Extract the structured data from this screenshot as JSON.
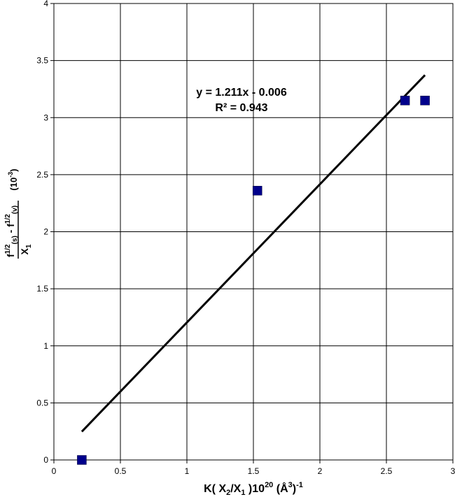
{
  "chart_data": {
    "type": "scatter",
    "title": "",
    "xlim": [
      0,
      3
    ],
    "ylim": [
      0,
      4
    ],
    "x_ticks": [
      0,
      0.5,
      1,
      1.5,
      2,
      2.5,
      3
    ],
    "y_ticks": [
      0,
      0.5,
      1,
      1.5,
      2,
      2.5,
      3,
      3.5,
      4
    ],
    "x_tick_labels": [
      "0",
      "0.5",
      "1",
      "1.5",
      "2",
      "2.5",
      "3"
    ],
    "y_tick_labels": [
      "0",
      "0.5",
      "1",
      "1.5",
      "2",
      "2.5",
      "3",
      "3.5",
      "4"
    ],
    "grid": true,
    "points": [
      {
        "x": 0.21,
        "y": 0.0
      },
      {
        "x": 1.53,
        "y": 2.36
      },
      {
        "x": 2.64,
        "y": 3.15
      },
      {
        "x": 2.79,
        "y": 3.15
      }
    ],
    "fit_line": {
      "slope": 1.211,
      "intercept": -0.006,
      "x_start": 0.21,
      "x_end": 2.79
    },
    "equation": "y = 1.211x - 0.006",
    "r_squared": "R² = 0.943",
    "xlabel": {
      "prefix": "K( X",
      "sub1": "2",
      "mid": "/X",
      "sub2": "1",
      "mid2": " )10",
      "sup1": "20",
      "mid3": " (Å",
      "sup2": "3",
      "suffix": ")",
      "sup3": "-1"
    },
    "ylabel": {
      "f1": "f",
      "sup_half_1": "1/2",
      "sub_s": "(s)",
      "minus": " - ",
      "f2": "f",
      "sup_half_2": "1/2",
      "sub_v": "(v)",
      "denominator": "X",
      "denominator_sub": "1",
      "unit_open": "(10",
      "unit_sup": "-3",
      "unit_close": ")"
    },
    "colors": {
      "marker": "#00008B",
      "line": "#000000",
      "grid": "#000000",
      "background": "#ffffff"
    }
  }
}
